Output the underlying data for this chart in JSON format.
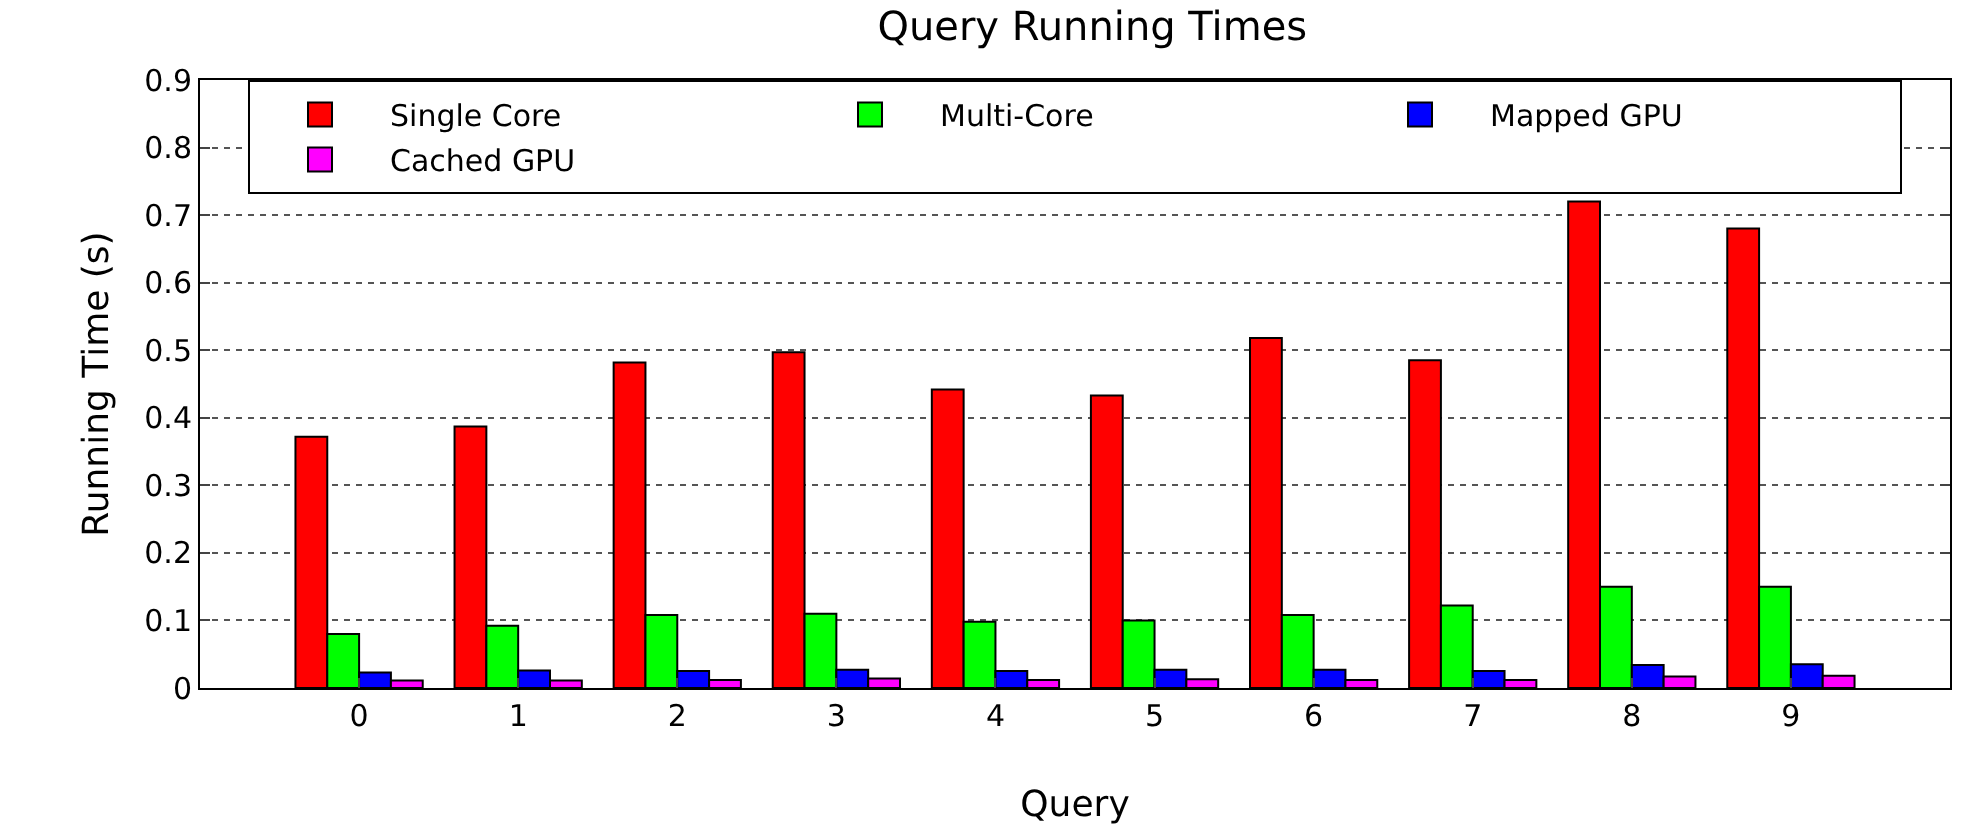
{
  "chart_data": {
    "type": "bar",
    "title": "Query Running Times",
    "xlabel": "Query",
    "ylabel": "Running Time (s)",
    "categories": [
      "0",
      "1",
      "2",
      "3",
      "4",
      "5",
      "6",
      "7",
      "8",
      "9"
    ],
    "series": [
      {
        "name": "Single Core",
        "color": "#ff0000",
        "values": [
          0.372,
          0.387,
          0.482,
          0.497,
          0.442,
          0.433,
          0.518,
          0.485,
          0.72,
          0.68
        ]
      },
      {
        "name": "Multi-Core",
        "color": "#00ff00",
        "values": [
          0.08,
          0.092,
          0.108,
          0.11,
          0.098,
          0.1,
          0.108,
          0.122,
          0.15,
          0.15
        ]
      },
      {
        "name": "Mapped GPU",
        "color": "#0000ff",
        "values": [
          0.023,
          0.026,
          0.025,
          0.027,
          0.025,
          0.027,
          0.027,
          0.025,
          0.034,
          0.035
        ]
      },
      {
        "name": "Cached GPU",
        "color": "#ff00ff",
        "values": [
          0.011,
          0.011,
          0.012,
          0.014,
          0.012,
          0.013,
          0.012,
          0.012,
          0.017,
          0.018
        ]
      }
    ],
    "ylim": [
      0,
      0.9
    ],
    "yticks": [
      0,
      0.1,
      0.2,
      0.3,
      0.4,
      0.5,
      0.6,
      0.7,
      0.8,
      0.9
    ],
    "grid": "y",
    "legend": "top"
  }
}
